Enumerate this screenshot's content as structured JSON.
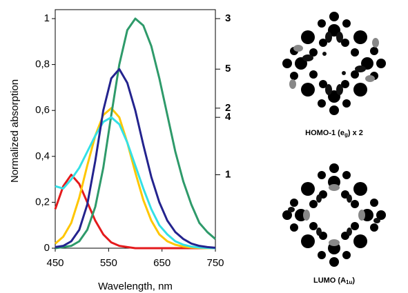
{
  "chart_data": {
    "type": "line",
    "x_label": "Wavelength, nm",
    "y_label": "Normalized absorption",
    "x": [
      450,
      465,
      480,
      495,
      510,
      525,
      540,
      555,
      570,
      585,
      600,
      615,
      630,
      645,
      660,
      675,
      690,
      705,
      720,
      735,
      750
    ],
    "series": [
      {
        "name": "1",
        "color": "#e41a1c",
        "values": [
          0.17,
          0.27,
          0.32,
          0.28,
          0.2,
          0.12,
          0.06,
          0.025,
          0.01,
          0.005,
          0,
          0,
          0,
          0,
          0,
          0,
          0,
          0,
          0,
          0,
          0
        ]
      },
      {
        "name": "2",
        "color": "#ffc600",
        "values": [
          0.02,
          0.05,
          0.11,
          0.22,
          0.36,
          0.49,
          0.58,
          0.61,
          0.57,
          0.46,
          0.33,
          0.21,
          0.12,
          0.06,
          0.03,
          0.015,
          0.007,
          0.003,
          0.001,
          0,
          0
        ]
      },
      {
        "name": "3",
        "color": "#2e9a6a",
        "values": [
          0,
          0.005,
          0.01,
          0.03,
          0.08,
          0.18,
          0.35,
          0.58,
          0.8,
          0.95,
          1.0,
          0.97,
          0.88,
          0.74,
          0.58,
          0.42,
          0.29,
          0.19,
          0.11,
          0.07,
          0.04
        ]
      },
      {
        "name": "4",
        "color": "#33e0e6",
        "values": [
          0.27,
          0.26,
          0.3,
          0.35,
          0.42,
          0.49,
          0.55,
          0.57,
          0.54,
          0.46,
          0.36,
          0.26,
          0.17,
          0.1,
          0.06,
          0.03,
          0.015,
          0.007,
          0.003,
          0.001,
          0
        ]
      },
      {
        "name": "5",
        "color": "#23238e",
        "values": [
          0.005,
          0.01,
          0.03,
          0.08,
          0.19,
          0.38,
          0.6,
          0.74,
          0.78,
          0.72,
          0.6,
          0.45,
          0.31,
          0.2,
          0.12,
          0.07,
          0.04,
          0.02,
          0.01,
          0.005,
          0.002
        ]
      }
    ],
    "xlim": [
      450,
      750
    ],
    "xticks": [
      450,
      550,
      650,
      750
    ],
    "ylim": [
      0,
      1
    ],
    "yticks": [
      0,
      {
        "value": 0.2,
        "label": "0,2"
      },
      {
        "value": 0.4,
        "label": "0,4"
      },
      {
        "value": 0.6,
        "label": "0,6"
      },
      {
        "value": 0.8,
        "label": "0,8"
      },
      1
    ]
  },
  "panels": [
    {
      "caption": "HOMO-1 (e",
      "sub": "g",
      "suffix": ") x 2"
    },
    {
      "caption": "LUMO (A",
      "sub": "1u",
      "suffix": ")"
    }
  ]
}
